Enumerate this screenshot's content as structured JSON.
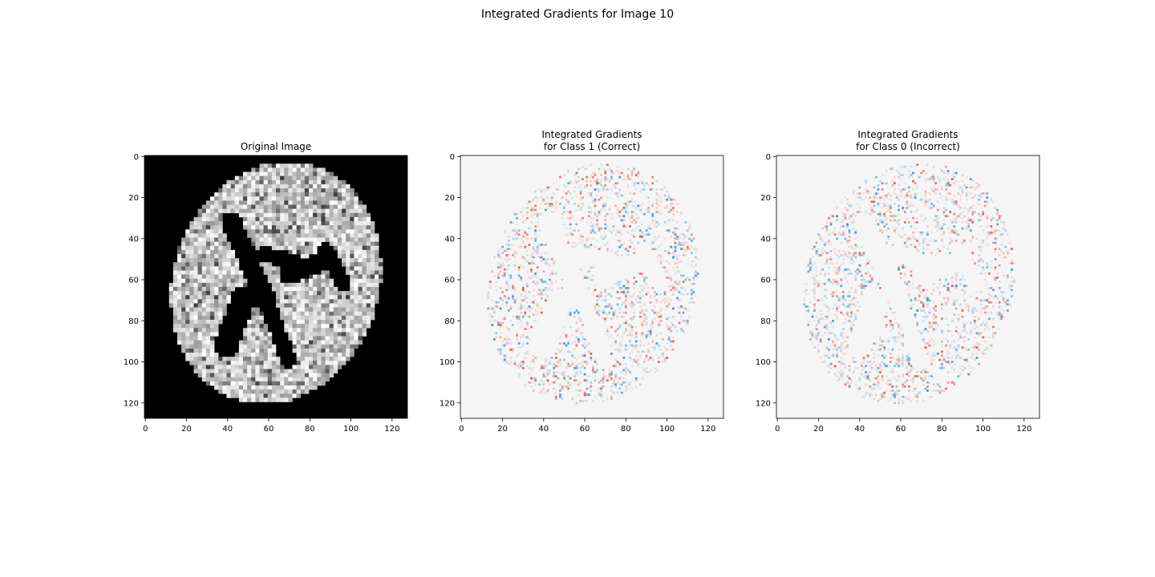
{
  "figure": {
    "suptitle": "Integrated Gradients for Image 10"
  },
  "colors": {
    "background": "#ffffff",
    "heatmap_neutral": "#f5f5f5",
    "heatmap_positive": "#c2401f",
    "heatmap_negative": "#1f74b4",
    "brain_light": "#f2f2f2",
    "brain_dark": "#000000"
  },
  "chart_data": [
    {
      "type": "heatmap",
      "title_lines": [
        "Original Image"
      ],
      "xlim": [
        0,
        128
      ],
      "ylim": [
        128,
        0
      ],
      "x_ticks": [
        0,
        20,
        40,
        60,
        80,
        100,
        120
      ],
      "y_ticks": [
        0,
        20,
        40,
        60,
        80,
        100,
        120
      ],
      "colormap": "gray",
      "grid": false
    },
    {
      "type": "heatmap",
      "title_lines": [
        "Integrated Gradients",
        "for Class 1 (Correct)"
      ],
      "xlim": [
        0,
        128
      ],
      "ylim": [
        128,
        0
      ],
      "x_ticks": [
        0,
        20,
        40,
        60,
        80,
        100,
        120
      ],
      "y_ticks": [
        0,
        20,
        40,
        60,
        80,
        100,
        120
      ],
      "colormap": "diverging red-blue",
      "grid": false
    },
    {
      "type": "heatmap",
      "title_lines": [
        "Integrated Gradients",
        "for Class 0 (Incorrect)"
      ],
      "xlim": [
        0,
        128
      ],
      "ylim": [
        128,
        0
      ],
      "x_ticks": [
        0,
        20,
        40,
        60,
        80,
        100,
        120
      ],
      "y_ticks": [
        0,
        20,
        40,
        60,
        80,
        100,
        120
      ],
      "colormap": "diverging red-blue",
      "grid": false
    }
  ]
}
